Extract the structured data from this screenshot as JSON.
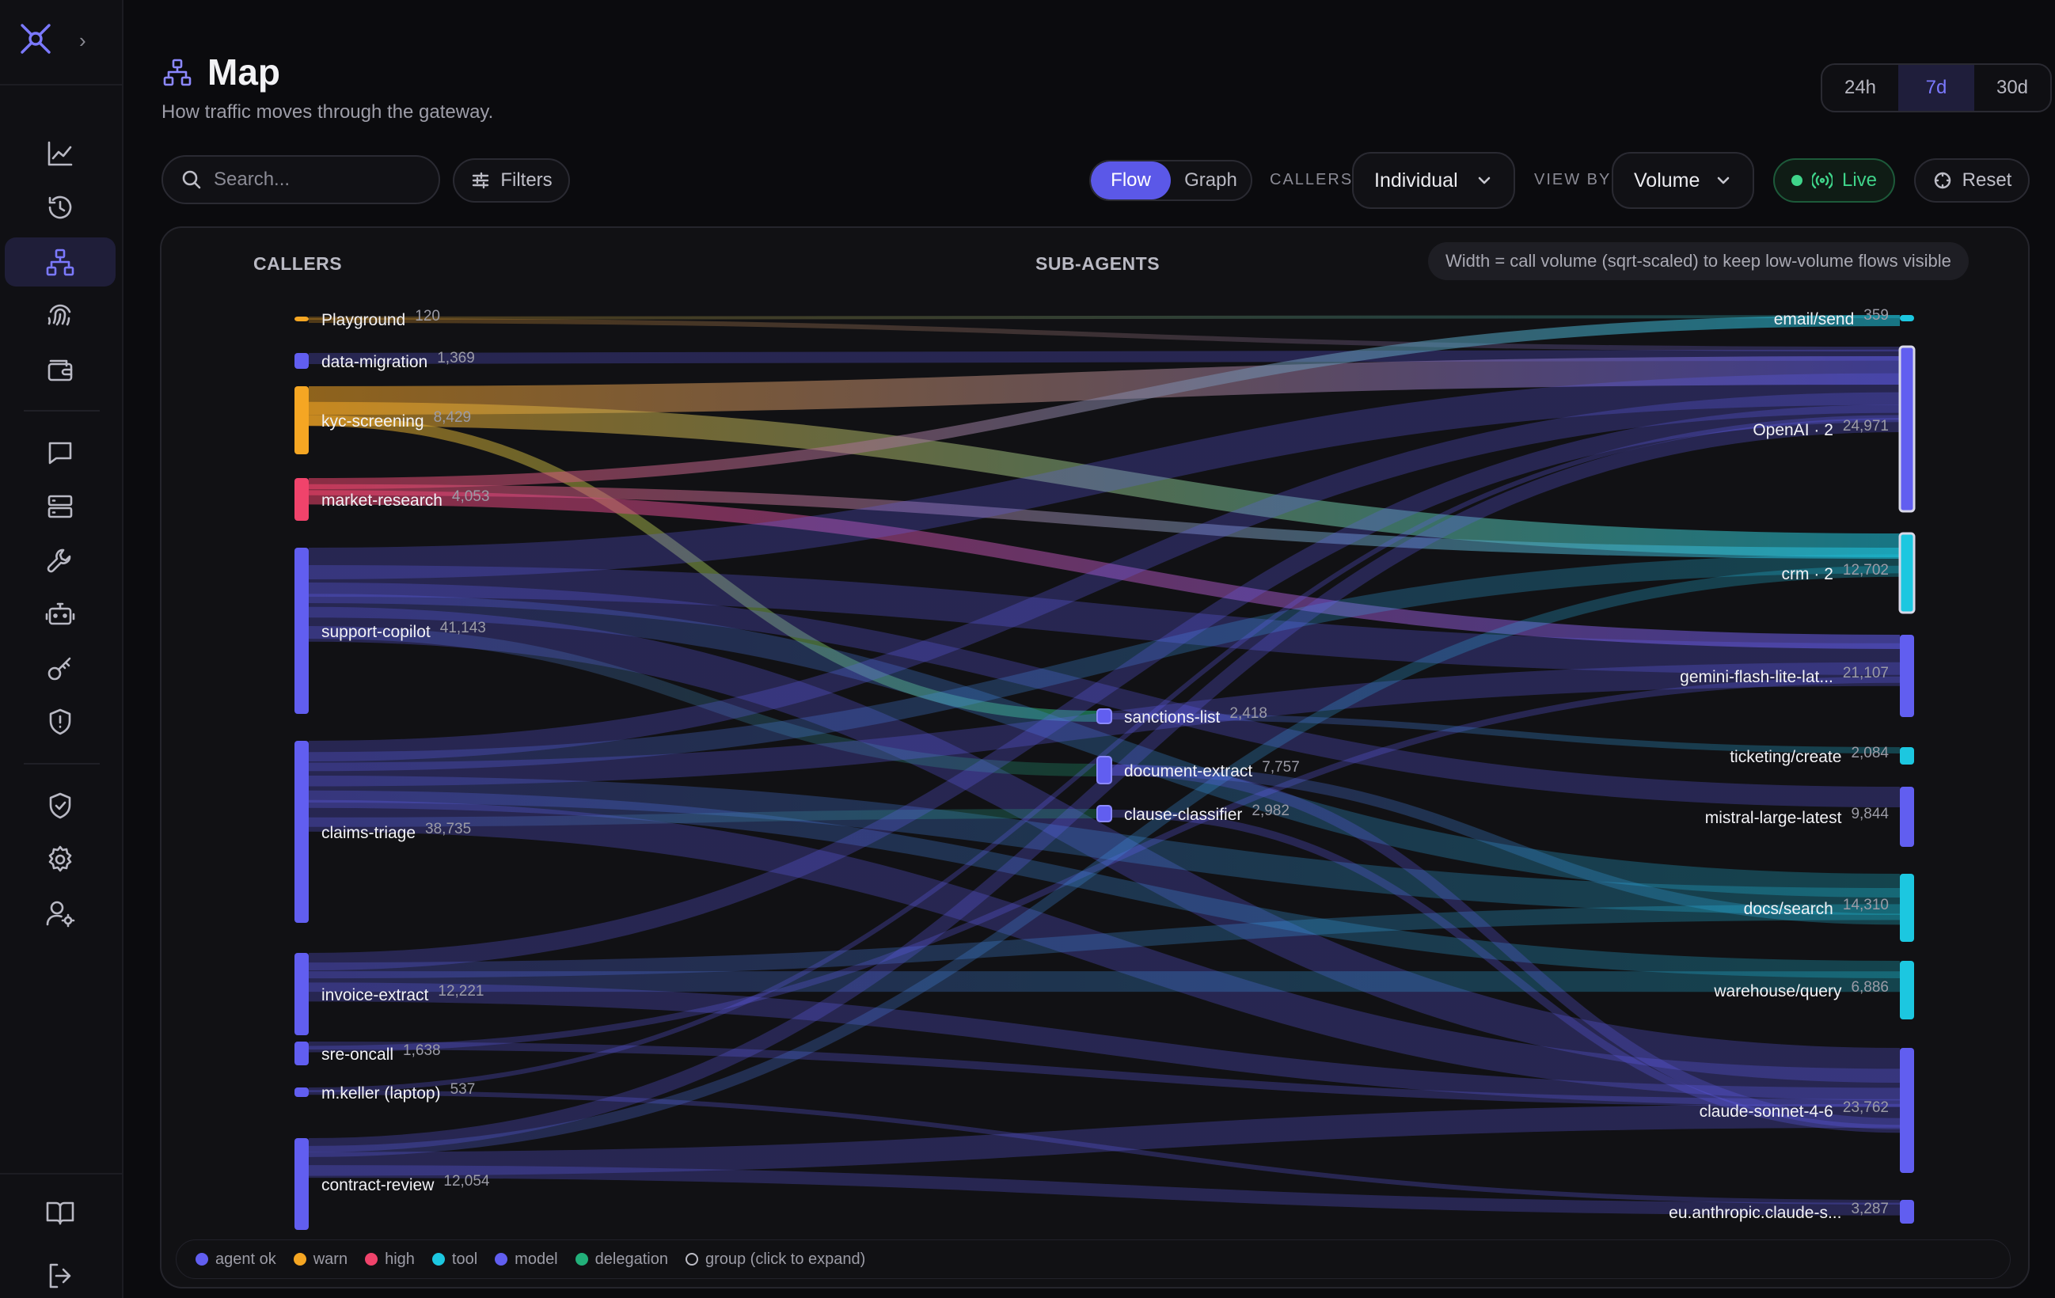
{
  "header": {
    "title": "Map",
    "subtitle": "How traffic moves through the gateway."
  },
  "time_range": {
    "options": [
      "24h",
      "7d",
      "30d"
    ],
    "selected": "7d"
  },
  "toolbar": {
    "search_placeholder": "Search...",
    "filters_label": "Filters",
    "view_modes": [
      "Flow",
      "Graph"
    ],
    "view_mode_selected": "Flow",
    "callers_label": "CALLERS",
    "callers_value": "Individual",
    "view_by_label": "VIEW BY",
    "view_by_value": "Volume",
    "live_label": "Live",
    "reset_label": "Reset"
  },
  "sidebar": {
    "items": [
      "logo-icon",
      "activity-chart-icon",
      "history-icon",
      "network-map-icon",
      "fingerprint-icon",
      "wallet-icon",
      "chat-icon",
      "servers-icon",
      "wrench-icon",
      "robot-icon",
      "key-icon",
      "shield-alert-icon",
      "shield-check-icon",
      "settings-icon",
      "user-settings-icon",
      "book-icon",
      "logout-icon"
    ],
    "active": "network-map-icon"
  },
  "sankey": {
    "column_titles": {
      "callers": "CALLERS",
      "subagents": "SUB-AGENTS"
    },
    "note": "Width = call volume (sqrt-scaled) to keep low-volume flows visible",
    "colors": {
      "agent_ok": "#615ef0",
      "warn": "#f5a623",
      "high": "#f0436b",
      "tool": "#1cc7e0",
      "model": "#615ef0",
      "delegation": "#22b07a"
    },
    "callers": [
      {
        "name": "Playground",
        "count": "120",
        "status": "warn"
      },
      {
        "name": "data-migration",
        "count": "1,369",
        "status": "agent_ok"
      },
      {
        "name": "kyc-screening",
        "count": "8,429",
        "status": "warn"
      },
      {
        "name": "market-research",
        "count": "4,053",
        "status": "high"
      },
      {
        "name": "support-copilot",
        "count": "41,143",
        "status": "agent_ok"
      },
      {
        "name": "claims-triage",
        "count": "38,735",
        "status": "agent_ok"
      },
      {
        "name": "invoice-extract",
        "count": "12,221",
        "status": "agent_ok"
      },
      {
        "name": "sre-oncall",
        "count": "1,638",
        "status": "agent_ok"
      },
      {
        "name": "m.keller (laptop)",
        "count": "537",
        "status": "agent_ok"
      },
      {
        "name": "contract-review",
        "count": "12,054",
        "status": "agent_ok"
      }
    ],
    "subagents": [
      {
        "name": "sanctions-list",
        "count": "2,418"
      },
      {
        "name": "document-extract",
        "count": "7,757"
      },
      {
        "name": "clause-classifier",
        "count": "2,982"
      }
    ],
    "targets": [
      {
        "name": "email/send",
        "count": "359",
        "kind": "tool"
      },
      {
        "name": "OpenAI · 2",
        "count": "24,971",
        "kind": "model",
        "group": true
      },
      {
        "name": "crm · 2",
        "count": "12,702",
        "kind": "tool",
        "group": true
      },
      {
        "name": "gemini-flash-lite-lat...",
        "count": "21,107",
        "kind": "model"
      },
      {
        "name": "ticketing/create",
        "count": "2,084",
        "kind": "tool"
      },
      {
        "name": "mistral-large-latest",
        "count": "9,844",
        "kind": "model"
      },
      {
        "name": "docs/search",
        "count": "14,310",
        "kind": "tool"
      },
      {
        "name": "warehouse/query",
        "count": "6,886",
        "kind": "tool"
      },
      {
        "name": "claude-sonnet-4-6",
        "count": "23,762",
        "kind": "model"
      },
      {
        "name": "eu.anthropic.claude-s...",
        "count": "3,287",
        "kind": "model"
      }
    ]
  },
  "legend": [
    {
      "label": "agent ok",
      "color": "#615ef0"
    },
    {
      "label": "warn",
      "color": "#f5a623"
    },
    {
      "label": "high",
      "color": "#f0436b"
    },
    {
      "label": "tool",
      "color": "#1cc7e0"
    },
    {
      "label": "model",
      "color": "#615ef0"
    },
    {
      "label": "delegation",
      "color": "#22b07a"
    },
    {
      "label": "group (click to expand)",
      "color": "ring"
    }
  ]
}
